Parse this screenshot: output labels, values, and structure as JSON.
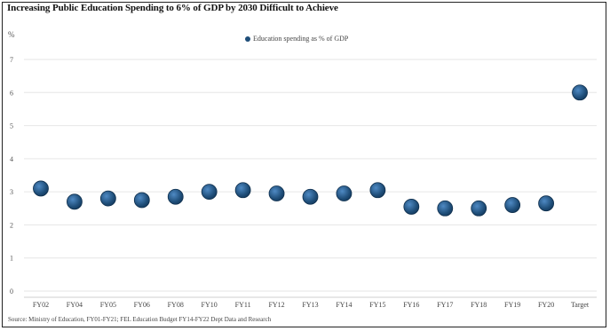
{
  "title": "Increasing Public Education Spending to 6% of GDP by 2030 Difficult to Achieve",
  "y_unit": "%",
  "legend_label": "Education spending as % of GDP",
  "source": "Source: Ministry of Education, FY01-FY21; FEL Education Budget FY14-FY22 Dept Data and Research",
  "colors": {
    "marker": "#1f4e79",
    "gridline": "#e6e6e6"
  },
  "chart_data": {
    "type": "scatter",
    "title": "Increasing Public Education Spending to 6% of GDP by 2030 Difficult to Achieve",
    "ylabel": "%",
    "ylim": [
      0,
      7
    ],
    "y_ticks": [
      0,
      1,
      2,
      3,
      4,
      5,
      6,
      7
    ],
    "grid": true,
    "legend_position": "top",
    "categories": [
      "FY02",
      "FY04",
      "FY05",
      "FY06",
      "FY08",
      "FY10",
      "FY11",
      "FY12",
      "FY13",
      "FY14",
      "FY15",
      "FY16",
      "FY17",
      "FY18",
      "FY19",
      "FY20",
      "Target"
    ],
    "series": [
      {
        "name": "Education spending as % of GDP",
        "values": [
          3.1,
          2.7,
          2.8,
          2.75,
          2.85,
          3.0,
          3.05,
          2.95,
          2.85,
          2.95,
          3.05,
          2.55,
          2.5,
          2.5,
          2.6,
          2.65,
          6.0
        ]
      }
    ]
  }
}
